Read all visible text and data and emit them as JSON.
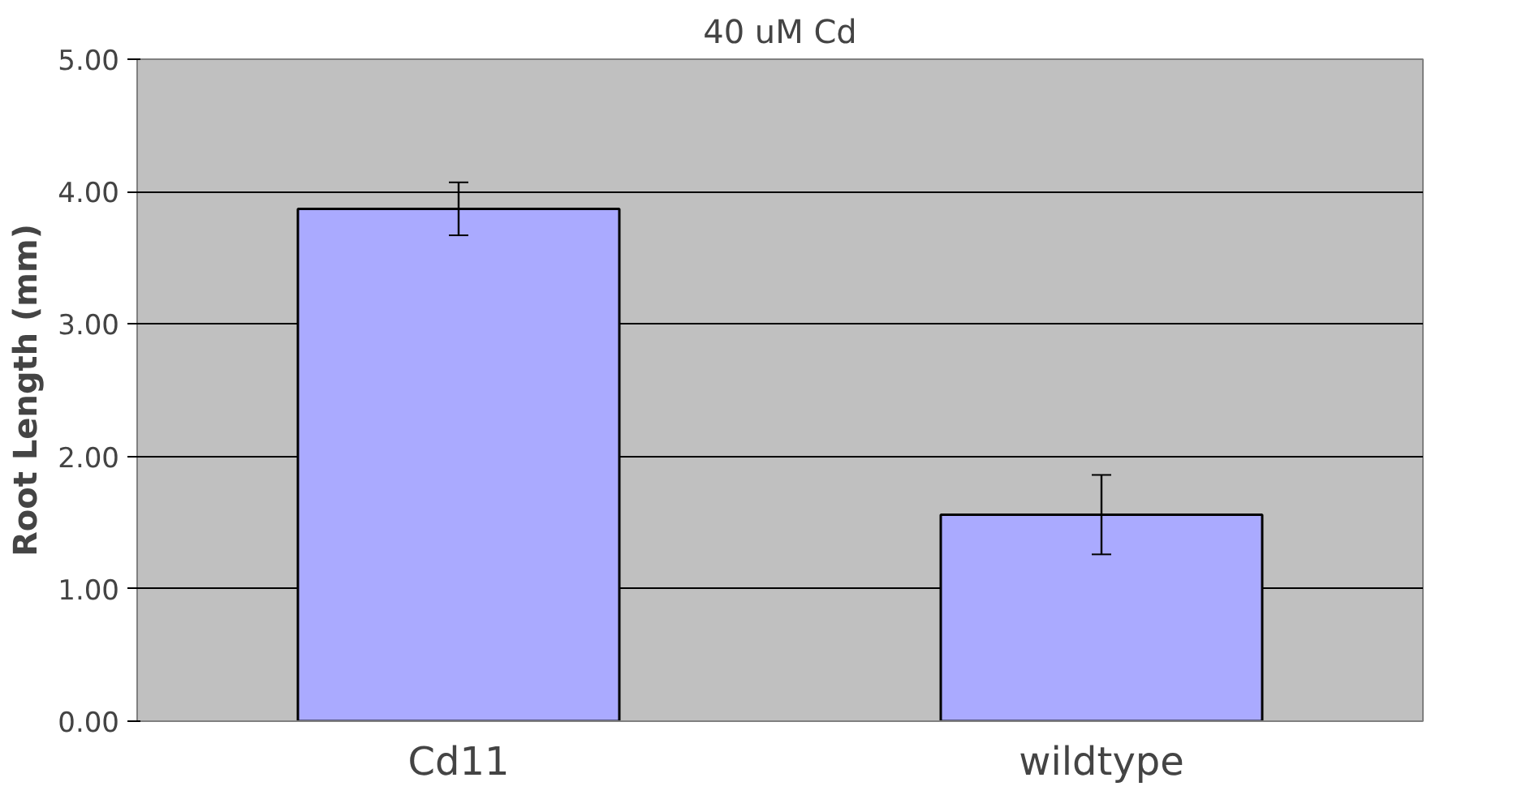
{
  "chart_data": {
    "type": "bar",
    "title": "40 uM Cd",
    "ylabel": "Root Length (mm)",
    "categories": [
      "Cd11",
      "wildtype"
    ],
    "values": [
      3.87,
      1.56
    ],
    "errors": [
      0.2,
      0.3
    ],
    "color": "#aaaaff",
    "ylim": [
      0,
      5
    ],
    "yticks": [
      {
        "value": 0,
        "label": "0.00"
      },
      {
        "value": 1,
        "label": "1.00"
      },
      {
        "value": 2,
        "label": "2.00"
      },
      {
        "value": 3,
        "label": "3.00"
      },
      {
        "value": 4,
        "label": "4.00"
      },
      {
        "value": 5,
        "label": "5.00"
      }
    ],
    "grid": "y"
  }
}
